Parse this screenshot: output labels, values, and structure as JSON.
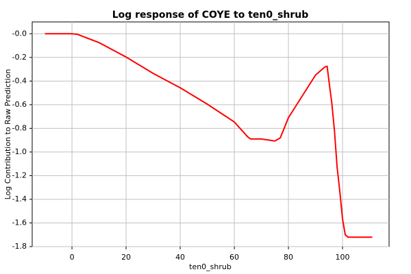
{
  "chart_data": {
    "type": "line",
    "title": "Log response of COYE to ten0_shrub",
    "x_label": "ten0_shrub",
    "y_label": "Log Contribution to Raw Prediction",
    "x": [
      -10,
      0,
      2,
      10,
      20,
      30,
      40,
      50,
      60,
      65,
      66,
      70,
      73,
      75,
      77,
      80,
      85,
      90,
      93.5,
      94.3,
      95.2,
      96,
      97,
      98,
      99,
      100,
      101,
      102,
      111
    ],
    "series": [
      {
        "name": "COYE",
        "color": "#ff0000",
        "values": [
          0,
          0,
          -0.005,
          -0.075,
          -0.197,
          -0.335,
          -0.457,
          -0.595,
          -0.746,
          -0.873,
          -0.89,
          -0.89,
          -0.9,
          -0.907,
          -0.88,
          -0.71,
          -0.53,
          -0.35,
          -0.28,
          -0.275,
          -0.44,
          -0.58,
          -0.815,
          -1.13,
          -1.335,
          -1.566,
          -1.7,
          -1.72,
          -1.72
        ]
      }
    ],
    "xlim": [
      -14.7,
      117.2
    ],
    "xticks": [
      0,
      20,
      40,
      60,
      80,
      100
    ],
    "ylim": [
      -1.8,
      0.1
    ],
    "yticks": [
      {
        "value": 0,
        "label": "-0.0"
      },
      -0.2,
      -0.4,
      -0.6,
      -0.8,
      {
        "value": -1,
        "label": "-1.0"
      },
      -1.2,
      -1.4,
      -1.6,
      -1.8
    ],
    "grid": true
  }
}
